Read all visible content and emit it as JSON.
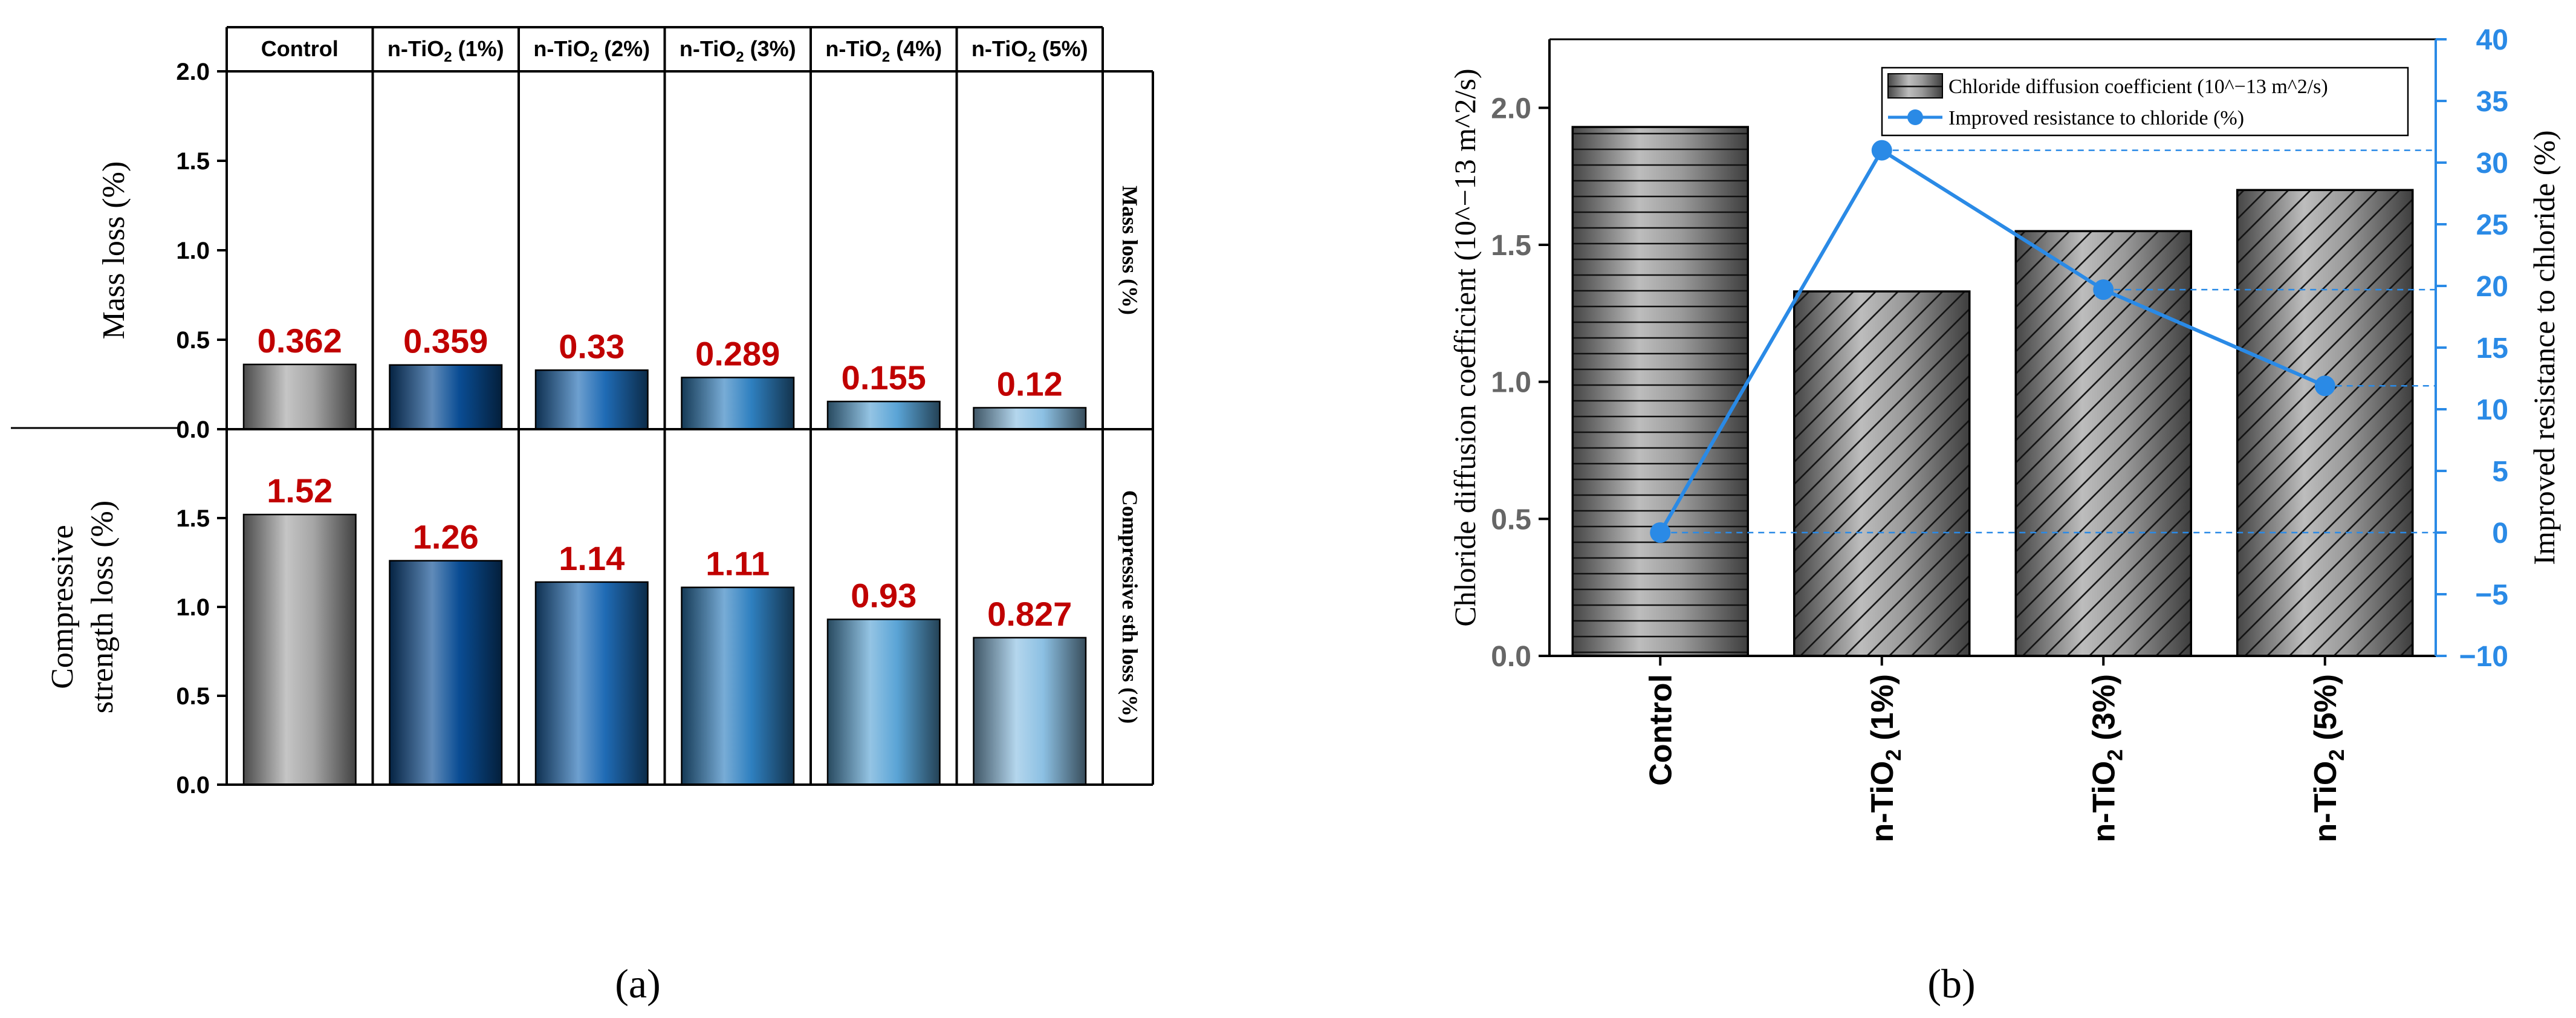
{
  "chart_data": [
    {
      "panel": "a",
      "type": "bar",
      "caption": "(a)",
      "categories": [
        "Control",
        "n-TiO2 (1%)",
        "n-TiO2 (2%)",
        "n-TiO2 (3%)",
        "n-TiO2 (4%)",
        "n-TiO2 (5%)"
      ],
      "category_labels": [
        {
          "pre": "Control",
          "sub": "",
          "post": ""
        },
        {
          "pre": "n-TiO",
          "sub": "2",
          "post": " (1%)"
        },
        {
          "pre": "n-TiO",
          "sub": "2",
          "post": " (2%)"
        },
        {
          "pre": "n-TiO",
          "sub": "2",
          "post": " (3%)"
        },
        {
          "pre": "n-TiO",
          "sub": "2",
          "post": " (4%)"
        },
        {
          "pre": "n-TiO",
          "sub": "2",
          "post": " (5%)"
        }
      ],
      "bar_colors": [
        "#a6a6a6",
        "#0a4d94",
        "#1f6bb5",
        "#2f80c0",
        "#5aa4d6",
        "#8cc0e3"
      ],
      "label_color": "#c00000",
      "subplots": [
        {
          "name": "mass-loss",
          "ylabel": "Mass loss (%)",
          "side_label": "Mass loss (%)",
          "ylim": [
            0,
            2.0
          ],
          "yticks": [
            "0.0",
            "0.5",
            "1.0",
            "1.5",
            "2.0"
          ],
          "values": [
            0.362,
            0.359,
            0.33,
            0.289,
            0.155,
            0.12
          ],
          "value_labels": [
            "0.362",
            "0.359",
            "0.33",
            "0.289",
            "0.155",
            "0.12"
          ]
        },
        {
          "name": "compressive-strength-loss",
          "ylabel_lines": [
            "Compressive",
            "strength loss (%)"
          ],
          "side_label": "Compressive sth loss (%)",
          "ylim": [
            0,
            2.0
          ],
          "yticks": [
            "0.0",
            "0.5",
            "1.0",
            "1.5"
          ],
          "values": [
            1.52,
            1.26,
            1.14,
            1.11,
            0.93,
            0.827
          ],
          "value_labels": [
            "1.52",
            "1.26",
            "1.14",
            "1.11",
            "0.93",
            "0.827"
          ]
        }
      ]
    },
    {
      "panel": "b",
      "type": "bar+line",
      "caption": "(b)",
      "categories": [
        "Control",
        "n-TiO2 (1%)",
        "n-TiO2 (3%)",
        "n-TiO2 (5%)"
      ],
      "category_labels": [
        {
          "pre": "Control",
          "sub": "",
          "post": ""
        },
        {
          "pre": "n-TiO",
          "sub": "2",
          "post": " (1%)"
        },
        {
          "pre": "n-TiO",
          "sub": "2",
          "post": " (3%)"
        },
        {
          "pre": "n-TiO",
          "sub": "2",
          "post": " (5%)"
        }
      ],
      "ylabel": "Chloride diffusion coefficient (10^−13 m^2/s)",
      "y2label": "Improved resistance to chloride (%)",
      "ylim": [
        0,
        2.25
      ],
      "yticks": [
        "0.0",
        "0.5",
        "1.0",
        "1.5",
        "2.0"
      ],
      "y2lim": [
        -10,
        40
      ],
      "y2ticks": [
        "−10",
        "−5",
        "0",
        "5",
        "10",
        "15",
        "20",
        "25",
        "30",
        "35",
        "40"
      ],
      "series": [
        {
          "name": "Chloride diffusion coefficient (10^−13 m^2/s)",
          "type": "bar",
          "axis": "left",
          "values": [
            1.93,
            1.33,
            1.55,
            1.7
          ]
        },
        {
          "name": "Improved resistance to chloride (%)",
          "type": "line",
          "axis": "right",
          "values": [
            0,
            31,
            19.7,
            11.9
          ]
        }
      ],
      "line_color": "#2a8ae6",
      "legend": {
        "position": "top-right",
        "entries": [
          "Chloride diffusion coefficient (10^−13 m^2/s)",
          "Improved resistance to chloride (%)"
        ]
      }
    }
  ]
}
